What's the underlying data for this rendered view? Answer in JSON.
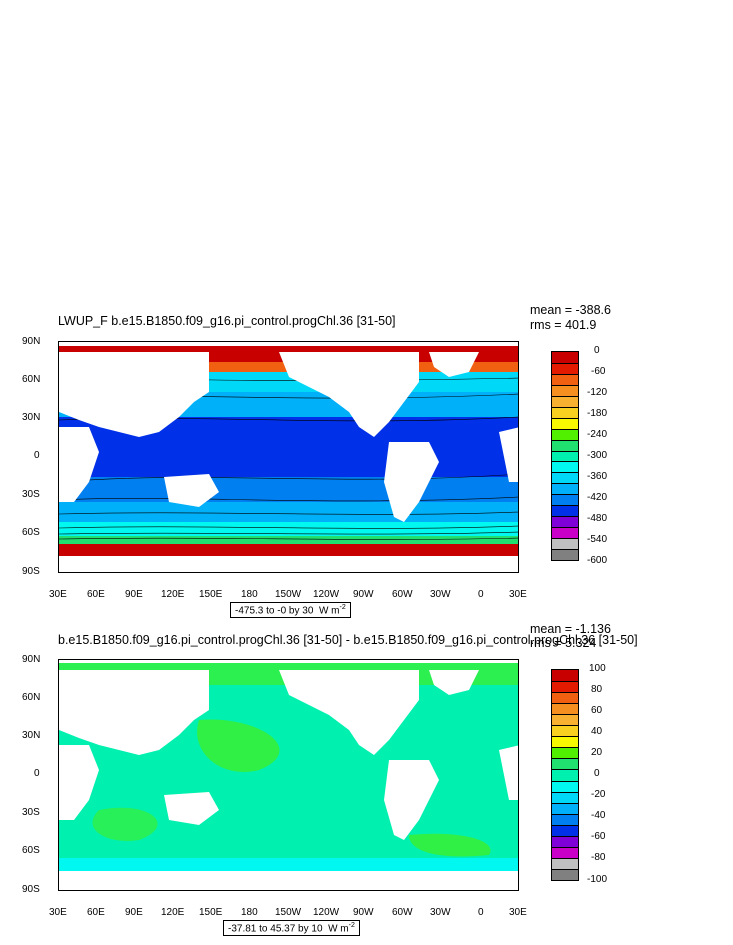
{
  "panels": [
    {
      "title": "LWUP_F b.e15.B1850.f09_g16.pi_control.progChl.36 [31-50]",
      "mean": "mean = -388.6",
      "rms": "rms = 401.9",
      "range": "-475.3 to -0 by 30",
      "units": "W m",
      "units_exp": "-2",
      "lat_labels": [
        "90N",
        "60N",
        "30N",
        "0",
        "30S",
        "60S",
        "90S"
      ],
      "lon_labels": [
        "30E",
        "60E",
        "90E",
        "120E",
        "150E",
        "180",
        "150W",
        "120W",
        "90W",
        "60W",
        "30W",
        "0",
        "30E"
      ],
      "colorbar_labels": [
        "0",
        "-60",
        "-120",
        "-180",
        "-240",
        "-300",
        "-360",
        "-420",
        "-480",
        "-540",
        "-600"
      ],
      "colorbar_colors": [
        "#c80000",
        "#e11a00",
        "#f06010",
        "#f59020",
        "#f8b030",
        "#f8d020",
        "#f8f800",
        "#50f000",
        "#20e070",
        "#00f0b0",
        "#00f8f0",
        "#00d8f8",
        "#00b0f8",
        "#0080f0",
        "#0030e8",
        "#8000d8",
        "#c800c8",
        "#c0c0c0",
        "#808080"
      ],
      "chart_data": {
        "type": "heatmap",
        "variable": "LWUP_F",
        "mean": -388.6,
        "rms": 401.9,
        "contour_min": -475.3,
        "contour_max": 0,
        "contour_interval": 30,
        "color_levels": [
          0,
          -30,
          -60,
          -90,
          -120,
          -150,
          -180,
          -210,
          -240,
          -270,
          -300,
          -330,
          -360,
          -390,
          -420,
          -450,
          -480,
          -510,
          -540,
          -570,
          -600
        ]
      }
    },
    {
      "title": "b.e15.B1850.f09_g16.pi_control.progChl.36 [31-50] - b.e15.B1850.f09_g16.pi_control.progChl.36 [31-50]",
      "mean": "mean = -1.136",
      "rms": "rms = 5.324",
      "range": "-37.81 to 45.37 by 10",
      "units": "W m",
      "units_exp": "-2",
      "lat_labels": [
        "90N",
        "60N",
        "30N",
        "0",
        "30S",
        "60S",
        "90S"
      ],
      "lon_labels": [
        "30E",
        "60E",
        "90E",
        "120E",
        "150E",
        "180",
        "150W",
        "120W",
        "90W",
        "60W",
        "30W",
        "0",
        "30E"
      ],
      "colorbar_labels": [
        "100",
        "80",
        "60",
        "40",
        "20",
        "0",
        "-20",
        "-40",
        "-60",
        "-80",
        "-100"
      ],
      "colorbar_colors": [
        "#c80000",
        "#e11a00",
        "#f06010",
        "#f59020",
        "#f8b030",
        "#f8d020",
        "#f8f800",
        "#50f000",
        "#20e070",
        "#00f0b0",
        "#00f8f0",
        "#00d8f8",
        "#00b0f8",
        "#0080f0",
        "#0030e8",
        "#8000d8",
        "#c800c8",
        "#c0c0c0",
        "#808080"
      ],
      "chart_data": {
        "type": "heatmap",
        "variable": "difference",
        "mean": -1.136,
        "rms": 5.324,
        "contour_min": -37.81,
        "contour_max": 45.37,
        "contour_interval": 10,
        "color_levels": [
          100,
          90,
          80,
          70,
          60,
          50,
          40,
          30,
          20,
          10,
          0,
          -10,
          -20,
          -30,
          -40,
          -50,
          -60,
          -70,
          -80,
          -90,
          -100
        ]
      }
    }
  ]
}
